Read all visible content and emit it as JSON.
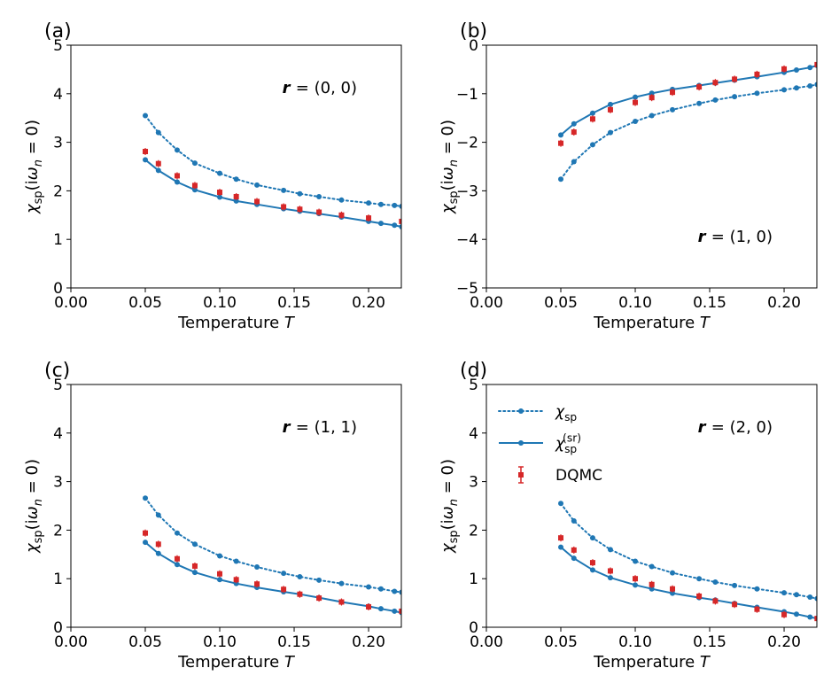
{
  "chart_data": [
    {
      "type": "line",
      "panel_label": "(a)",
      "annotation": {
        "bold": "r",
        "text": "= (0, 0)"
      },
      "xlabel": "Temperature T",
      "ylabel": "χsp(iωn = 0)",
      "xlim": [
        0.0,
        0.222
      ],
      "ylim": [
        0,
        5
      ],
      "xticks": [
        0.0,
        0.05,
        0.1,
        0.15,
        0.2
      ],
      "xtick_labels": [
        "0.00",
        "0.05",
        "0.10",
        "0.15",
        "0.20"
      ],
      "yticks": [
        0,
        1,
        2,
        3,
        4,
        5
      ],
      "ytick_labels": [
        "0",
        "1",
        "2",
        "3",
        "4",
        "5"
      ],
      "series": [
        {
          "name": "χsp",
          "style": "dotted",
          "color": "#1f77b4",
          "x": [
            0.05,
            0.0588,
            0.0714,
            0.0833,
            0.1,
            0.1111,
            0.125,
            0.1429,
            0.1538,
            0.1667,
            0.1818,
            0.2,
            0.2083,
            0.2174,
            0.2222
          ],
          "y": [
            3.55,
            3.2,
            2.84,
            2.57,
            2.36,
            2.24,
            2.12,
            2.01,
            1.94,
            1.88,
            1.81,
            1.75,
            1.72,
            1.7,
            1.68
          ]
        },
        {
          "name": "χsp(sr)",
          "style": "solid",
          "color": "#1f77b4",
          "x": [
            0.05,
            0.0588,
            0.0714,
            0.0833,
            0.1,
            0.1111,
            0.125,
            0.1429,
            0.1538,
            0.1667,
            0.1818,
            0.2,
            0.2083,
            0.2174,
            0.2222
          ],
          "y": [
            2.64,
            2.42,
            2.18,
            2.02,
            1.87,
            1.79,
            1.72,
            1.63,
            1.58,
            1.53,
            1.46,
            1.37,
            1.33,
            1.29,
            1.26
          ]
        },
        {
          "name": "DQMC",
          "style": "errorbar",
          "color": "#d62728",
          "x": [
            0.05,
            0.0588,
            0.0714,
            0.0833,
            0.1,
            0.1111,
            0.125,
            0.1429,
            0.1538,
            0.1667,
            0.1818,
            0.2,
            0.2222
          ],
          "y": [
            2.81,
            2.56,
            2.31,
            2.11,
            1.97,
            1.88,
            1.78,
            1.67,
            1.62,
            1.56,
            1.5,
            1.44,
            1.37
          ]
        }
      ]
    },
    {
      "type": "line",
      "panel_label": "(b)",
      "annotation": {
        "bold": "r",
        "text": "= (1, 0)"
      },
      "xlabel": "Temperature T",
      "ylabel": "χsp(iωn = 0)",
      "xlim": [
        0.0,
        0.222
      ],
      "ylim": [
        -5,
        0
      ],
      "xticks": [
        0.0,
        0.05,
        0.1,
        0.15,
        0.2
      ],
      "xtick_labels": [
        "0.00",
        "0.05",
        "0.10",
        "0.15",
        "0.20"
      ],
      "yticks": [
        -5,
        -4,
        -3,
        -2,
        -1,
        0
      ],
      "ytick_labels": [
        "−5",
        "−4",
        "−3",
        "−2",
        "−1",
        "0"
      ],
      "series": [
        {
          "name": "χsp",
          "style": "dotted",
          "color": "#1f77b4",
          "x": [
            0.05,
            0.0588,
            0.0714,
            0.0833,
            0.1,
            0.1111,
            0.125,
            0.1429,
            0.1538,
            0.1667,
            0.1818,
            0.2,
            0.2083,
            0.2174,
            0.2222
          ],
          "y": [
            -2.76,
            -2.4,
            -2.05,
            -1.8,
            -1.57,
            -1.45,
            -1.33,
            -1.2,
            -1.13,
            -1.06,
            -0.99,
            -0.92,
            -0.88,
            -0.84,
            -0.81
          ]
        },
        {
          "name": "χsp(sr)",
          "style": "solid",
          "color": "#1f77b4",
          "x": [
            0.05,
            0.0588,
            0.0714,
            0.0833,
            0.1,
            0.1111,
            0.125,
            0.1429,
            0.1538,
            0.1667,
            0.1818,
            0.2,
            0.2083,
            0.2174,
            0.2222
          ],
          "y": [
            -1.85,
            -1.62,
            -1.4,
            -1.22,
            -1.07,
            -0.99,
            -0.91,
            -0.83,
            -0.78,
            -0.72,
            -0.65,
            -0.56,
            -0.51,
            -0.46,
            -0.42
          ]
        },
        {
          "name": "DQMC",
          "style": "errorbar",
          "color": "#d62728",
          "x": [
            0.05,
            0.0588,
            0.0714,
            0.0833,
            0.1,
            0.1111,
            0.125,
            0.1429,
            0.1538,
            0.1667,
            0.1818,
            0.2,
            0.2222
          ],
          "y": [
            -2.02,
            -1.79,
            -1.52,
            -1.33,
            -1.18,
            -1.08,
            -0.97,
            -0.86,
            -0.77,
            -0.7,
            -0.6,
            -0.49,
            -0.4
          ]
        }
      ]
    },
    {
      "type": "line",
      "panel_label": "(c)",
      "annotation": {
        "bold": "r",
        "text": "= (1, 1)"
      },
      "xlabel": "Temperature T",
      "ylabel": "χsp(iωn = 0)",
      "xlim": [
        0.0,
        0.222
      ],
      "ylim": [
        0,
        5
      ],
      "xticks": [
        0.0,
        0.05,
        0.1,
        0.15,
        0.2
      ],
      "xtick_labels": [
        "0.00",
        "0.05",
        "0.10",
        "0.15",
        "0.20"
      ],
      "yticks": [
        0,
        1,
        2,
        3,
        4,
        5
      ],
      "ytick_labels": [
        "0",
        "1",
        "2",
        "3",
        "4",
        "5"
      ],
      "series": [
        {
          "name": "χsp",
          "style": "dotted",
          "color": "#1f77b4",
          "x": [
            0.05,
            0.0588,
            0.0714,
            0.0833,
            0.1,
            0.1111,
            0.125,
            0.1429,
            0.1538,
            0.1667,
            0.1818,
            0.2,
            0.2083,
            0.2174,
            0.2222
          ],
          "y": [
            2.66,
            2.31,
            1.94,
            1.71,
            1.47,
            1.36,
            1.24,
            1.11,
            1.04,
            0.97,
            0.9,
            0.83,
            0.79,
            0.74,
            0.72
          ]
        },
        {
          "name": "χsp(sr)",
          "style": "solid",
          "color": "#1f77b4",
          "x": [
            0.05,
            0.0588,
            0.0714,
            0.0833,
            0.1,
            0.1111,
            0.125,
            0.1429,
            0.1538,
            0.1667,
            0.1818,
            0.2,
            0.2083,
            0.2174,
            0.2222
          ],
          "y": [
            1.75,
            1.52,
            1.29,
            1.13,
            0.98,
            0.9,
            0.82,
            0.73,
            0.68,
            0.61,
            0.52,
            0.43,
            0.38,
            0.33,
            0.3
          ]
        },
        {
          "name": "DQMC",
          "style": "errorbar",
          "color": "#d62728",
          "x": [
            0.05,
            0.0588,
            0.0714,
            0.0833,
            0.1,
            0.1111,
            0.125,
            0.1429,
            0.1538,
            0.1667,
            0.1818,
            0.2,
            0.2222
          ],
          "y": [
            1.94,
            1.71,
            1.41,
            1.26,
            1.1,
            0.98,
            0.89,
            0.78,
            0.68,
            0.6,
            0.52,
            0.42,
            0.33
          ]
        }
      ]
    },
    {
      "type": "line",
      "panel_label": "(d)",
      "annotation": {
        "bold": "r",
        "text": "= (2, 0)"
      },
      "xlabel": "Temperature T",
      "ylabel": "χsp(iωn = 0)",
      "xlim": [
        0.0,
        0.222
      ],
      "ylim": [
        0,
        5
      ],
      "xticks": [
        0.0,
        0.05,
        0.1,
        0.15,
        0.2
      ],
      "xtick_labels": [
        "0.00",
        "0.05",
        "0.10",
        "0.15",
        "0.20"
      ],
      "yticks": [
        0,
        1,
        2,
        3,
        4,
        5
      ],
      "ytick_labels": [
        "0",
        "1",
        "2",
        "3",
        "4",
        "5"
      ],
      "legend": {
        "placement": "upper-left",
        "entries": [
          {
            "label": "χsp",
            "style": "dotted",
            "color": "#1f77b4"
          },
          {
            "label": "χsp(sr)",
            "style": "solid",
            "color": "#1f77b4"
          },
          {
            "label": "DQMC",
            "style": "errorbar",
            "color": "#d62728"
          }
        ]
      },
      "series": [
        {
          "name": "χsp",
          "style": "dotted",
          "color": "#1f77b4",
          "x": [
            0.05,
            0.0588,
            0.0714,
            0.0833,
            0.1,
            0.1111,
            0.125,
            0.1429,
            0.1538,
            0.1667,
            0.1818,
            0.2,
            0.2083,
            0.2174,
            0.2222
          ],
          "y": [
            2.55,
            2.19,
            1.84,
            1.6,
            1.36,
            1.25,
            1.12,
            1.0,
            0.93,
            0.86,
            0.79,
            0.71,
            0.67,
            0.62,
            0.59
          ]
        },
        {
          "name": "χsp(sr)",
          "style": "solid",
          "color": "#1f77b4",
          "x": [
            0.05,
            0.0588,
            0.0714,
            0.0833,
            0.1,
            0.1111,
            0.125,
            0.1429,
            0.1538,
            0.1667,
            0.1818,
            0.2,
            0.2083,
            0.2174,
            0.2222
          ],
          "y": [
            1.65,
            1.42,
            1.18,
            1.02,
            0.87,
            0.79,
            0.7,
            0.61,
            0.56,
            0.49,
            0.41,
            0.32,
            0.27,
            0.21,
            0.18
          ]
        },
        {
          "name": "DQMC",
          "style": "errorbar",
          "color": "#d62728",
          "x": [
            0.05,
            0.0588,
            0.0714,
            0.0833,
            0.1,
            0.1111,
            0.125,
            0.1429,
            0.1538,
            0.1667,
            0.1818,
            0.2,
            0.2222
          ],
          "y": [
            1.84,
            1.59,
            1.33,
            1.16,
            1.0,
            0.88,
            0.79,
            0.64,
            0.54,
            0.47,
            0.37,
            0.26,
            0.18
          ]
        }
      ]
    }
  ]
}
